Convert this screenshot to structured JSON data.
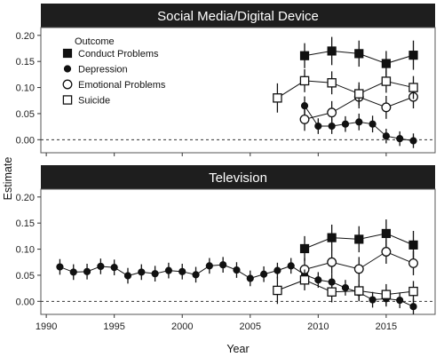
{
  "chart_data": {
    "type": "scatter",
    "ylabel": "Estimate",
    "xlabel": "Year",
    "xlim": [
      1989.6,
      2018.6
    ],
    "ylim": [
      -0.025,
      0.215
    ],
    "x_ticks": [
      1990,
      1995,
      2000,
      2005,
      2010,
      2015
    ],
    "y_ticks": [
      0.0,
      0.05,
      0.1,
      0.15,
      0.2
    ],
    "y_tick_labels": [
      "0.00",
      "0.05",
      "0.10",
      "0.15",
      "0.20"
    ],
    "reference_line": 0,
    "legend": {
      "title": "Outcome",
      "position": "top-left",
      "entries": [
        {
          "label": "Conduct Problems",
          "marker": "filled-square"
        },
        {
          "label": "Depression",
          "marker": "filled-circle"
        },
        {
          "label": "Emotional Problems",
          "marker": "open-circle"
        },
        {
          "label": "Suicide",
          "marker": "open-square"
        }
      ]
    },
    "panels": [
      {
        "title": "Social Media/Digital Device",
        "series": [
          {
            "name": "Conduct Problems",
            "marker": "filled-square",
            "points": [
              {
                "x": 2009,
                "y": 0.161,
                "lo": 0.137,
                "hi": 0.185
              },
              {
                "x": 2011,
                "y": 0.17,
                "lo": 0.143,
                "hi": 0.197
              },
              {
                "x": 2013,
                "y": 0.165,
                "lo": 0.14,
                "hi": 0.19
              },
              {
                "x": 2015,
                "y": 0.146,
                "lo": 0.122,
                "hi": 0.17
              },
              {
                "x": 2017,
                "y": 0.162,
                "lo": 0.134,
                "hi": 0.19
              }
            ]
          },
          {
            "name": "Depression",
            "marker": "filled-circle",
            "points": [
              {
                "x": 2009,
                "y": 0.065,
                "lo": 0.047,
                "hi": 0.083
              },
              {
                "x": 2010,
                "y": 0.026,
                "lo": 0.011,
                "hi": 0.041
              },
              {
                "x": 2011,
                "y": 0.026,
                "lo": 0.011,
                "hi": 0.041
              },
              {
                "x": 2012,
                "y": 0.03,
                "lo": 0.015,
                "hi": 0.045
              },
              {
                "x": 2013,
                "y": 0.034,
                "lo": 0.018,
                "hi": 0.05
              },
              {
                "x": 2014,
                "y": 0.03,
                "lo": 0.014,
                "hi": 0.046
              },
              {
                "x": 2015,
                "y": 0.007,
                "lo": -0.007,
                "hi": 0.021
              },
              {
                "x": 2016,
                "y": 0.002,
                "lo": -0.012,
                "hi": 0.016
              },
              {
                "x": 2017,
                "y": -0.002,
                "lo": -0.016,
                "hi": 0.012
              }
            ]
          },
          {
            "name": "Emotional Problems",
            "marker": "open-circle",
            "points": [
              {
                "x": 2009,
                "y": 0.039,
                "lo": 0.017,
                "hi": 0.061
              },
              {
                "x": 2011,
                "y": 0.052,
                "lo": 0.03,
                "hi": 0.074
              },
              {
                "x": 2013,
                "y": 0.082,
                "lo": 0.06,
                "hi": 0.104
              },
              {
                "x": 2015,
                "y": 0.062,
                "lo": 0.04,
                "hi": 0.084
              },
              {
                "x": 2017,
                "y": 0.082,
                "lo": 0.06,
                "hi": 0.104
              }
            ]
          },
          {
            "name": "Suicide",
            "marker": "open-square",
            "points": [
              {
                "x": 2007,
                "y": 0.08,
                "lo": 0.052,
                "hi": 0.108
              },
              {
                "x": 2009,
                "y": 0.113,
                "lo": 0.091,
                "hi": 0.135
              },
              {
                "x": 2011,
                "y": 0.109,
                "lo": 0.087,
                "hi": 0.131
              },
              {
                "x": 2013,
                "y": 0.088,
                "lo": 0.066,
                "hi": 0.11
              },
              {
                "x": 2015,
                "y": 0.112,
                "lo": 0.09,
                "hi": 0.134
              },
              {
                "x": 2017,
                "y": 0.1,
                "lo": 0.078,
                "hi": 0.122
              }
            ]
          }
        ]
      },
      {
        "title": "Television",
        "series": [
          {
            "name": "Conduct Problems",
            "marker": "filled-square",
            "points": [
              {
                "x": 2009,
                "y": 0.101,
                "lo": 0.077,
                "hi": 0.125
              },
              {
                "x": 2011,
                "y": 0.122,
                "lo": 0.097,
                "hi": 0.147
              },
              {
                "x": 2013,
                "y": 0.119,
                "lo": 0.094,
                "hi": 0.144
              },
              {
                "x": 2015,
                "y": 0.13,
                "lo": 0.103,
                "hi": 0.157
              },
              {
                "x": 2017,
                "y": 0.108,
                "lo": 0.081,
                "hi": 0.135
              }
            ]
          },
          {
            "name": "Depression",
            "marker": "filled-circle",
            "points": [
              {
                "x": 1991,
                "y": 0.066,
                "lo": 0.051,
                "hi": 0.081
              },
              {
                "x": 1992,
                "y": 0.056,
                "lo": 0.041,
                "hi": 0.071
              },
              {
                "x": 1993,
                "y": 0.057,
                "lo": 0.042,
                "hi": 0.072
              },
              {
                "x": 1994,
                "y": 0.067,
                "lo": 0.052,
                "hi": 0.082
              },
              {
                "x": 1995,
                "y": 0.065,
                "lo": 0.05,
                "hi": 0.08
              },
              {
                "x": 1996,
                "y": 0.049,
                "lo": 0.034,
                "hi": 0.064
              },
              {
                "x": 1997,
                "y": 0.056,
                "lo": 0.041,
                "hi": 0.071
              },
              {
                "x": 1998,
                "y": 0.053,
                "lo": 0.038,
                "hi": 0.068
              },
              {
                "x": 1999,
                "y": 0.059,
                "lo": 0.044,
                "hi": 0.074
              },
              {
                "x": 2000,
                "y": 0.057,
                "lo": 0.042,
                "hi": 0.072
              },
              {
                "x": 2001,
                "y": 0.051,
                "lo": 0.036,
                "hi": 0.066
              },
              {
                "x": 2002,
                "y": 0.068,
                "lo": 0.053,
                "hi": 0.083
              },
              {
                "x": 2003,
                "y": 0.07,
                "lo": 0.055,
                "hi": 0.085
              },
              {
                "x": 2004,
                "y": 0.06,
                "lo": 0.045,
                "hi": 0.075
              },
              {
                "x": 2005,
                "y": 0.044,
                "lo": 0.029,
                "hi": 0.059
              },
              {
                "x": 2006,
                "y": 0.052,
                "lo": 0.037,
                "hi": 0.067
              },
              {
                "x": 2007,
                "y": 0.059,
                "lo": 0.044,
                "hi": 0.074
              },
              {
                "x": 2008,
                "y": 0.068,
                "lo": 0.053,
                "hi": 0.083
              },
              {
                "x": 2009,
                "y": 0.051,
                "lo": 0.036,
                "hi": 0.066
              },
              {
                "x": 2010,
                "y": 0.041,
                "lo": 0.026,
                "hi": 0.056
              },
              {
                "x": 2011,
                "y": 0.037,
                "lo": 0.022,
                "hi": 0.052
              },
              {
                "x": 2012,
                "y": 0.026,
                "lo": 0.011,
                "hi": 0.041
              },
              {
                "x": 2013,
                "y": 0.017,
                "lo": 0.002,
                "hi": 0.032
              },
              {
                "x": 2014,
                "y": 0.003,
                "lo": -0.012,
                "hi": 0.018
              },
              {
                "x": 2015,
                "y": 0.005,
                "lo": -0.01,
                "hi": 0.02
              },
              {
                "x": 2016,
                "y": 0.002,
                "lo": -0.013,
                "hi": 0.017
              },
              {
                "x": 2017,
                "y": -0.01,
                "lo": -0.025,
                "hi": 0.005
              }
            ]
          },
          {
            "name": "Emotional Problems",
            "marker": "open-circle",
            "points": [
              {
                "x": 2009,
                "y": 0.061,
                "lo": 0.039,
                "hi": 0.083
              },
              {
                "x": 2011,
                "y": 0.075,
                "lo": 0.052,
                "hi": 0.098
              },
              {
                "x": 2013,
                "y": 0.062,
                "lo": 0.039,
                "hi": 0.085
              },
              {
                "x": 2015,
                "y": 0.095,
                "lo": 0.072,
                "hi": 0.118
              },
              {
                "x": 2017,
                "y": 0.073,
                "lo": 0.05,
                "hi": 0.096
              }
            ]
          },
          {
            "name": "Suicide",
            "marker": "open-square",
            "points": [
              {
                "x": 2007,
                "y": 0.021,
                "lo": -0.005,
                "hi": 0.047
              },
              {
                "x": 2009,
                "y": 0.041,
                "lo": 0.021,
                "hi": 0.061
              },
              {
                "x": 2011,
                "y": 0.018,
                "lo": -0.002,
                "hi": 0.038
              },
              {
                "x": 2013,
                "y": 0.02,
                "lo": 0.0,
                "hi": 0.04
              },
              {
                "x": 2015,
                "y": 0.013,
                "lo": -0.007,
                "hi": 0.033
              },
              {
                "x": 2017,
                "y": 0.019,
                "lo": -0.001,
                "hi": 0.039
              }
            ]
          }
        ]
      }
    ]
  }
}
